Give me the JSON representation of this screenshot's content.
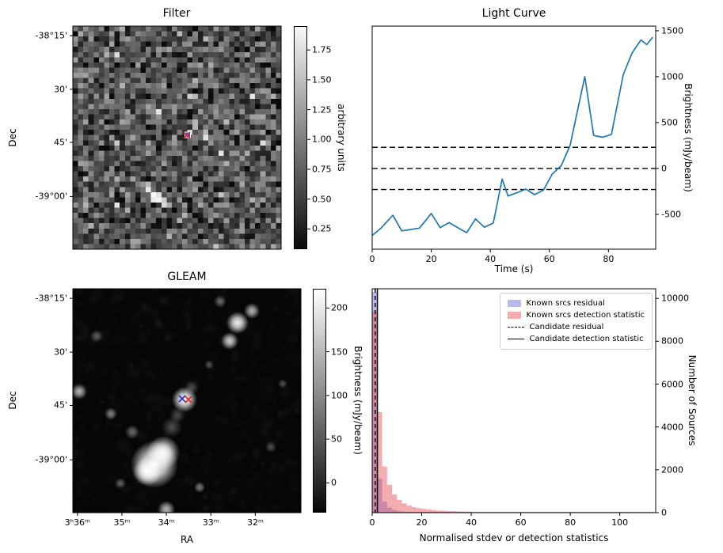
{
  "figure": {
    "background": "#ffffff"
  },
  "chart_data": [
    {
      "type": "heatmap",
      "panel": "top-left",
      "title": "Filter",
      "ylabel": "Dec",
      "yticks": [
        "-38°15'",
        "30'",
        "45'",
        "-39°00'"
      ],
      "colorbar_label": "arbitrary units",
      "colorbar_ticks": [
        "1.75",
        "1.50",
        "1.25",
        "1.00",
        "0.75",
        "0.50",
        "0.25"
      ],
      "description": "Grayscale pixelated noise map; candidate position marked with blue square and red x; bright elongated streak below centre",
      "marker": {
        "square_color": "#3a50d9",
        "x_color": "#e03131"
      }
    },
    {
      "type": "line",
      "panel": "top-right",
      "title": "Light Curve",
      "xlabel": "Time (s)",
      "ylabel": "Brightness (mJy/beam)",
      "xlim": [
        0,
        96
      ],
      "ylim": [
        -880,
        1551
      ],
      "xticks": [
        0,
        20,
        40,
        60,
        80
      ],
      "yticks": [
        -500,
        0,
        500,
        1000,
        1500
      ],
      "hlines_dashed": [
        230,
        0,
        -230
      ],
      "line_color": "#1f77b4",
      "x": [
        0,
        3,
        7,
        10,
        13,
        16,
        20,
        23,
        26,
        29,
        32,
        35,
        38,
        41,
        44,
        46,
        49,
        52,
        55,
        58,
        61,
        64,
        67,
        70,
        72,
        75,
        78,
        81,
        85,
        88,
        91,
        93,
        95
      ],
      "y": [
        -730,
        -650,
        -510,
        -680,
        -665,
        -650,
        -490,
        -645,
        -590,
        -645,
        -700,
        -550,
        -640,
        -595,
        -115,
        -300,
        -265,
        -225,
        -285,
        -235,
        -60,
        30,
        250,
        700,
        1000,
        360,
        340,
        370,
        1020,
        1260,
        1400,
        1350,
        1430
      ]
    },
    {
      "type": "heatmap",
      "panel": "bottom-left",
      "title": "GLEAM",
      "xlabel": "RA",
      "ylabel": "Dec",
      "xticks": [
        "3ʰ36ᵐ",
        "35ᵐ",
        "34ᵐ",
        "33ᵐ",
        "32ᵐ"
      ],
      "yticks": [
        "-38°15'",
        "30'",
        "45'",
        "-39°00'"
      ],
      "colorbar_label": "Brightness (mJy/beam)",
      "colorbar_ticks": [
        "200",
        "150",
        "100",
        "50",
        "0"
      ],
      "description": "Smoothed GLEAM sky image with several bright sources; candidate marked with blue x and red x on a bright source",
      "marker": {
        "blue_x_color": "#2b35c9",
        "red_x_color": "#e03131"
      }
    },
    {
      "type": "histogram",
      "panel": "bottom-right",
      "title": "",
      "xlabel": "Normalised stdev or detection statistics",
      "ylabel": "Number of Sources",
      "xlim": [
        0,
        114.5
      ],
      "ylim": [
        0,
        10450
      ],
      "xticks": [
        0,
        20,
        40,
        60,
        80,
        100
      ],
      "yticks": [
        0,
        2000,
        4000,
        6000,
        8000,
        10000
      ],
      "bin_width": 2,
      "series": [
        {
          "name": "Known srcs residual",
          "color": "rgba(80,80,220,0.40)",
          "values": [
            10300,
            1600,
            520,
            240,
            130,
            75,
            48,
            32,
            22,
            15,
            11,
            8,
            6,
            4,
            3,
            2,
            2,
            1,
            1,
            1
          ]
        },
        {
          "name": "Known srcs detection statistic",
          "color": "rgba(230,70,80,0.45)",
          "values": [
            9400,
            4700,
            2150,
            1300,
            850,
            600,
            430,
            330,
            260,
            210,
            175,
            145,
            120,
            100,
            88,
            76,
            66,
            58,
            52,
            46,
            41,
            37,
            33,
            30,
            27,
            25,
            23,
            21,
            19,
            18,
            16,
            15,
            14,
            13,
            12,
            11,
            11,
            10,
            9,
            9,
            8,
            8,
            7,
            7,
            6,
            6,
            5,
            5,
            5,
            4,
            4,
            4,
            3,
            3,
            3,
            3,
            2
          ]
        }
      ],
      "vlines": [
        {
          "name": "Candidate residual",
          "x": 1.2,
          "style": "dashed"
        },
        {
          "name": "Candidate detection statistic",
          "x": 2.1,
          "style": "solid"
        }
      ],
      "legend": [
        "Known srcs residual",
        "Known srcs detection statistic",
        "Candidate residual",
        "Candidate detection statistic"
      ]
    }
  ]
}
